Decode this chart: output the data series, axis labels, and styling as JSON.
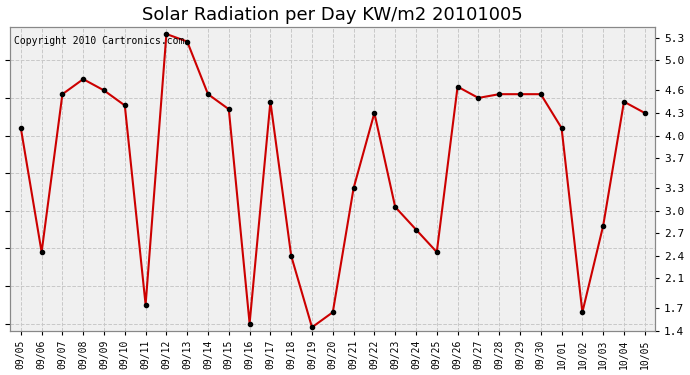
{
  "title": "Solar Radiation per Day KW/m2 20101005",
  "copyright": "Copyright 2010 Cartronics.com",
  "dates": [
    "09/05",
    "09/06",
    "09/07",
    "09/08",
    "09/09",
    "09/10",
    "09/11",
    "09/12",
    "09/13",
    "09/14",
    "09/15",
    "09/16",
    "09/17",
    "09/18",
    "09/19",
    "09/20",
    "09/21",
    "09/22",
    "09/23",
    "09/24",
    "09/25",
    "09/26",
    "09/27",
    "09/28",
    "09/29",
    "09/30",
    "10/01",
    "10/02",
    "10/03",
    "10/04",
    "10/05"
  ],
  "values": [
    4.1,
    2.45,
    4.55,
    4.75,
    4.6,
    4.4,
    1.75,
    5.35,
    5.25,
    4.55,
    4.35,
    1.5,
    4.45,
    2.4,
    1.45,
    1.65,
    3.3,
    4.3,
    3.05,
    2.75,
    2.45,
    4.65,
    4.5,
    4.55,
    4.55,
    4.55,
    4.1,
    1.65,
    2.8,
    4.45,
    4.3
  ],
  "line_color": "#cc0000",
  "marker": "o",
  "marker_size": 3,
  "marker_color": "#000000",
  "plot_bg_color": "#f0f0f0",
  "fig_bg_color": "#ffffff",
  "grid_color": "#c8c8c8",
  "ylim": [
    1.4,
    5.45
  ],
  "yticks": [
    1.4,
    1.7,
    2.1,
    2.4,
    2.7,
    3.0,
    3.3,
    3.7,
    4.0,
    4.3,
    4.6,
    5.0,
    5.3
  ],
  "title_fontsize": 13,
  "copyright_fontsize": 7,
  "tick_fontsize": 8,
  "xtick_fontsize": 7
}
